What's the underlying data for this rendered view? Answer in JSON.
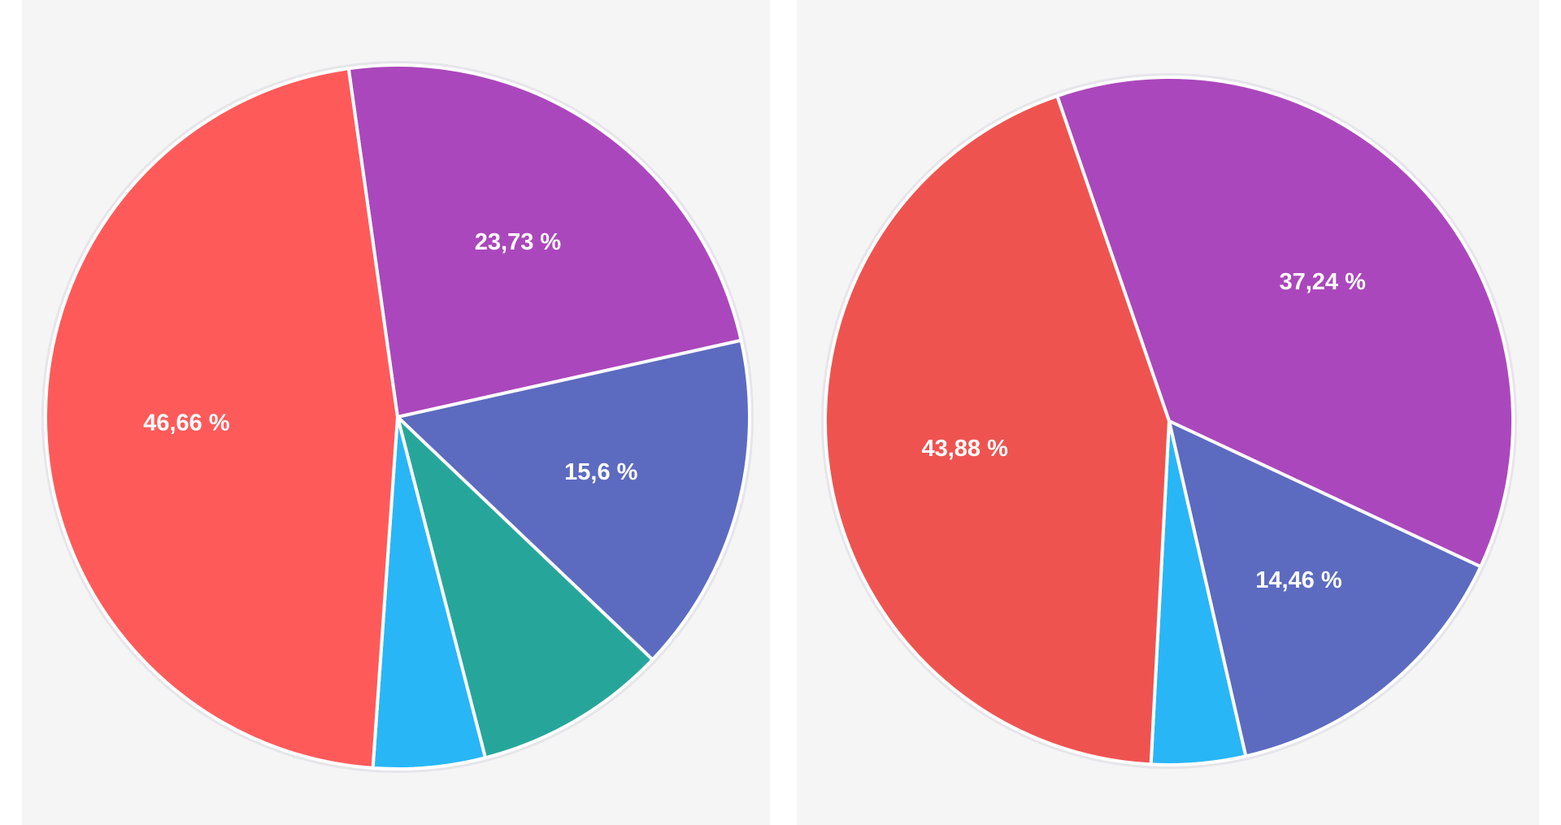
{
  "chart_data": [
    {
      "type": "pie",
      "start_angle_deg": -8,
      "direction": "clockwise",
      "slices": [
        {
          "value": 23.73,
          "label": "23,73 %",
          "color": "#ab47bc"
        },
        {
          "value": 15.6,
          "label": "15,6 %",
          "color": "#5c6bc0"
        },
        {
          "value": 8.88,
          "label": "",
          "color": "#26a69a"
        },
        {
          "value": 5.13,
          "label": "",
          "color": "#29b6f6"
        },
        {
          "value": 46.66,
          "label": "46,66 %",
          "color": "#ff5a5a"
        }
      ]
    },
    {
      "type": "pie",
      "start_angle_deg": -19,
      "direction": "clockwise",
      "slices": [
        {
          "value": 37.24,
          "label": "37,24 %",
          "color": "#ab47bc"
        },
        {
          "value": 14.46,
          "label": "14,46 %",
          "color": "#5c6bc0"
        },
        {
          "value": 4.42,
          "label": "",
          "color": "#29b6f6"
        },
        {
          "value": 43.88,
          "label": "43,88 %",
          "color": "#ef5350"
        }
      ]
    }
  ]
}
